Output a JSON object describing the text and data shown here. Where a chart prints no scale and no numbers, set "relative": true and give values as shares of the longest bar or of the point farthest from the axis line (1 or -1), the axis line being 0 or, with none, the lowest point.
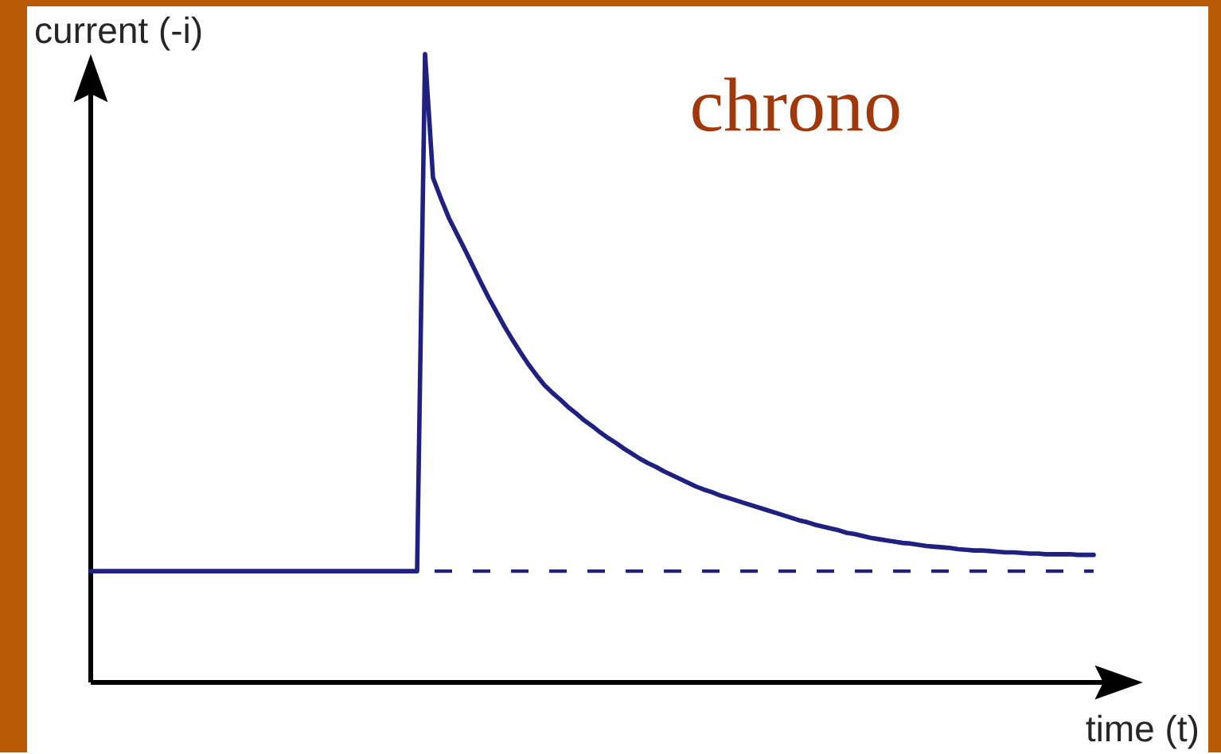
{
  "chart_data": {
    "type": "line",
    "title": "chrono",
    "xlabel": "time (t)",
    "ylabel": "current (-i)",
    "relative": true,
    "categories": [
      null,
      null,
      null,
      null,
      null,
      null,
      null,
      null,
      null,
      null,
      null,
      null,
      null,
      null,
      null,
      null,
      null,
      null,
      null,
      null,
      null,
      null,
      null,
      null,
      null,
      null,
      null,
      null,
      null,
      null,
      null,
      null,
      null,
      null,
      null,
      null,
      null,
      null,
      null,
      null,
      null,
      null,
      null,
      null,
      null,
      null,
      null,
      null,
      null,
      null,
      null,
      null,
      null,
      null,
      null,
      null,
      null,
      null,
      null,
      null,
      null,
      null,
      null,
      null,
      null,
      null,
      null,
      null,
      null,
      null,
      null,
      null,
      null,
      null,
      null,
      null,
      null,
      null,
      null,
      null,
      null,
      null,
      null,
      null,
      null,
      null,
      null,
      null,
      null,
      null,
      null,
      null,
      null,
      null,
      null,
      null,
      null,
      null,
      null,
      null,
      null,
      null,
      null,
      null,
      null,
      null,
      null,
      null,
      null,
      null,
      null,
      null,
      null,
      null,
      null,
      null,
      null,
      null,
      null,
      null,
      null,
      null,
      null,
      null,
      null,
      null,
      null
    ],
    "color": "#202080",
    "values": [
      0.177,
      0.177,
      0.177,
      0.177,
      0.177,
      0.177,
      0.177,
      0.177,
      0.177,
      0.177,
      0.177,
      0.177,
      0.177,
      0.177,
      0.177,
      0.177,
      0.177,
      0.177,
      0.177,
      0.177,
      0.177,
      0.177,
      0.177,
      0.177,
      0.177,
      0.177,
      0.177,
      0.177,
      0.177,
      0.177,
      0.177,
      0.177,
      0.177,
      0.177,
      0.177,
      0.177,
      0.177,
      0.177,
      0.177,
      0.177,
      0.177,
      0.177,
      1.0,
      0.803,
      0.77,
      0.739,
      0.714,
      0.689,
      0.663,
      0.637,
      0.612,
      0.589,
      0.566,
      0.545,
      0.525,
      0.506,
      0.489,
      0.473,
      0.461,
      0.45,
      0.438,
      0.428,
      0.417,
      0.408,
      0.398,
      0.389,
      0.381,
      0.372,
      0.364,
      0.356,
      0.349,
      0.343,
      0.336,
      0.33,
      0.324,
      0.318,
      0.312,
      0.307,
      0.303,
      0.298,
      0.294,
      0.29,
      0.286,
      0.282,
      0.278,
      0.274,
      0.27,
      0.266,
      0.262,
      0.258,
      0.255,
      0.251,
      0.248,
      0.245,
      0.242,
      0.238,
      0.236,
      0.233,
      0.23,
      0.228,
      0.226,
      0.224,
      0.222,
      0.221,
      0.219,
      0.217,
      0.216,
      0.215,
      0.214,
      0.212,
      0.211,
      0.21,
      0.21,
      0.209,
      0.208,
      0.207,
      0.207,
      0.206,
      0.205,
      0.205,
      0.204,
      0.204,
      0.204,
      0.204,
      0.203,
      0.203,
      0.203
    ],
    "ref_lines": [
      {
        "axis": "y",
        "value": 0.177,
        "color": "#202080",
        "line_style": "dashed"
      }
    ]
  }
}
